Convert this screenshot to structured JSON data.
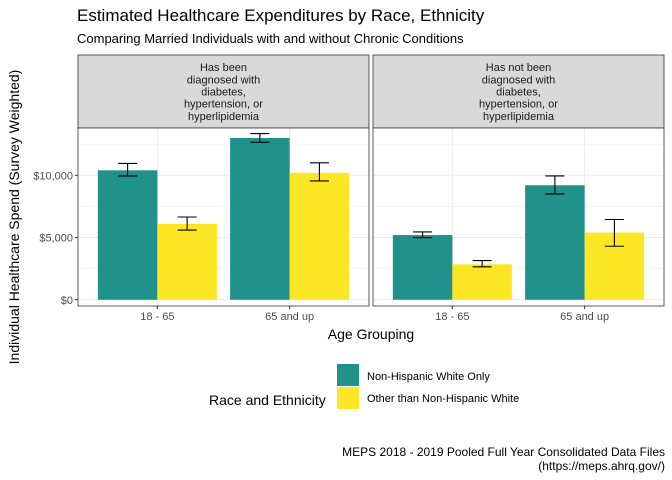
{
  "chart_data": {
    "type": "bar",
    "title": "Estimated Healthcare Expenditures by Race, Ethnicity",
    "subtitle": "Comparing Married Individuals with and without Chronic Conditions",
    "xlabel": "Age Grouping",
    "ylabel": "Individual Healthcare Spend (Survey Weighted)",
    "ylim": [
      -500,
      13800
    ],
    "yticks": [
      {
        "value": 0,
        "label": "$0"
      },
      {
        "value": 5000,
        "label": "$5,000"
      },
      {
        "value": 10000,
        "label": "$10,000"
      }
    ],
    "categories": [
      "18 - 65",
      "65 and up"
    ],
    "grid": true,
    "legend": {
      "title": "Race and Ethnicity",
      "placement": "bottom"
    },
    "series": [
      {
        "name": "Non-Hispanic White Only",
        "color": "#21918c"
      },
      {
        "name": "Other than Non-Hispanic White",
        "color": "#fde725"
      }
    ],
    "panels": [
      {
        "label_lines": [
          "Has been",
          "diagnosed with",
          "diabetes,",
          "hypertension, or",
          "hyperlipidemia"
        ],
        "values": [
          [
            10400,
            13000
          ],
          [
            6100,
            10200
          ]
        ],
        "error_low": [
          [
            9950,
            12650
          ],
          [
            5600,
            9550
          ]
        ],
        "error_high": [
          [
            10950,
            13350
          ],
          [
            6650,
            11000
          ]
        ]
      },
      {
        "label_lines": [
          "Has not been",
          "diagnosed with",
          "diabetes,",
          "hypertension, or",
          "hyperlipidemia"
        ],
        "values": [
          [
            5200,
            9200
          ],
          [
            2850,
            5400
          ]
        ],
        "error_low": [
          [
            5000,
            8500
          ],
          [
            2650,
            4300
          ]
        ],
        "error_high": [
          [
            5450,
            9950
          ],
          [
            3150,
            6450
          ]
        ]
      }
    ],
    "caption_lines": [
      "MEPS 2018 - 2019 Pooled Full Year Consolidated Data Files",
      "(https://meps.ahrq.gov/)"
    ]
  }
}
